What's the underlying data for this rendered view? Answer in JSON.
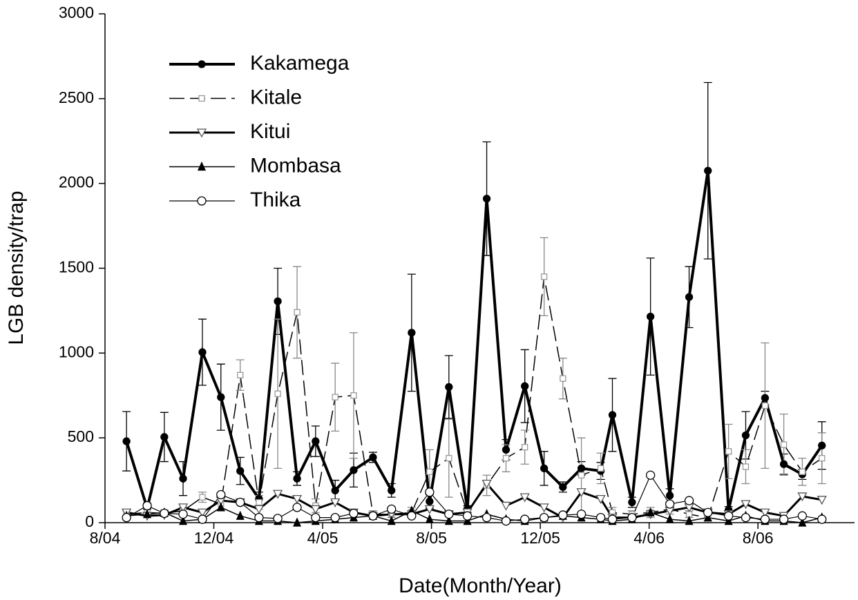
{
  "chart_data": {
    "type": "line",
    "x_label": "Date(Month/Year)",
    "y_label": "LGB density/trap",
    "xlim": [
      8,
      35.55
    ],
    "xticks": [
      {
        "value": 8,
        "label": "8/04"
      },
      {
        "value": 12,
        "label": "12/04"
      },
      {
        "value": 16,
        "label": "4/05"
      },
      {
        "value": 20,
        "label": "8/05"
      },
      {
        "value": 24,
        "label": "12/05"
      },
      {
        "value": 28,
        "label": "4/06"
      },
      {
        "value": 32,
        "label": "8/06"
      }
    ],
    "ylim": [
      0,
      3000
    ],
    "yticks": [
      0,
      500,
      1000,
      1500,
      2000,
      2500,
      3000
    ],
    "grid": false,
    "legend": "upper-left",
    "x": [
      8.79,
      9.55,
      10.18,
      10.87,
      11.58,
      12.26,
      12.97,
      13.66,
      14.35,
      15.06,
      15.74,
      16.46,
      17.14,
      17.85,
      18.53,
      19.27,
      19.93,
      20.64,
      21.32,
      22.03,
      22.74,
      23.43,
      24.14,
      24.83,
      25.51,
      26.22,
      26.65,
      27.37,
      28.05,
      28.76,
      29.47,
      30.16,
      30.92,
      31.55,
      32.26,
      32.95,
      33.63,
      34.35
    ],
    "series": [
      {
        "name": "Kakamega",
        "color": "#000000",
        "line_width": 4,
        "dash": "solid",
        "marker": "circle-filled",
        "values": [
          480,
          85,
          505,
          260,
          1005,
          740,
          305,
          140,
          1305,
          260,
          480,
          190,
          310,
          385,
          190,
          1120,
          125,
          800,
          80,
          1910,
          430,
          805,
          320,
          210,
          320,
          305,
          635,
          120,
          1215,
          160,
          1330,
          2075,
          75,
          515,
          735,
          345,
          285,
          455
        ],
        "errors": [
          175,
          30,
          145,
          100,
          195,
          195,
          80,
          40,
          195,
          40,
          90,
          60,
          100,
          30,
          40,
          345,
          40,
          185,
          20,
          335,
          60,
          215,
          100,
          30,
          40,
          50,
          215,
          30,
          345,
          40,
          180,
          520,
          20,
          140,
          40,
          60,
          30,
          140
        ]
      },
      {
        "name": "Kitale",
        "color": "#000000",
        "line_width": 1.5,
        "dash": "dashed",
        "marker": "square-open",
        "values": [
          50,
          60,
          55,
          70,
          150,
          110,
          870,
          120,
          760,
          1240,
          100,
          740,
          750,
          50,
          50,
          60,
          300,
          380,
          60,
          220,
          380,
          445,
          1450,
          850,
          280,
          320,
          60,
          50,
          60,
          80,
          50,
          30,
          420,
          330,
          690,
          460,
          300,
          380
        ],
        "errors": [
          20,
          20,
          20,
          20,
          30,
          40,
          90,
          40,
          440,
          270,
          40,
          200,
          370,
          20,
          20,
          30,
          130,
          230,
          30,
          60,
          80,
          100,
          230,
          120,
          220,
          90,
          30,
          20,
          30,
          30,
          20,
          20,
          160,
          100,
          370,
          180,
          80,
          150
        ]
      },
      {
        "name": "Kitui",
        "color": "#000000",
        "line_width": 3,
        "dash": "solid",
        "marker": "triangle-down-open",
        "values": [
          60,
          40,
          45,
          90,
          60,
          130,
          120,
          80,
          170,
          140,
          80,
          120,
          60,
          40,
          50,
          50,
          80,
          50,
          60,
          230,
          100,
          150,
          90,
          30,
          180,
          140,
          30,
          30,
          50,
          70,
          90,
          60,
          50,
          110,
          60,
          40,
          155,
          135
        ]
      },
      {
        "name": "Mombasa",
        "color": "#000000",
        "line_width": 1.5,
        "dash": "solid",
        "marker": "triangle-filled",
        "values": [
          40,
          50,
          60,
          10,
          20,
          90,
          40,
          10,
          10,
          0,
          10,
          20,
          30,
          40,
          10,
          70,
          20,
          10,
          10,
          50,
          20,
          10,
          30,
          40,
          30,
          20,
          10,
          20,
          60,
          20,
          10,
          30,
          10,
          40,
          10,
          10,
          0,
          30
        ]
      },
      {
        "name": "Thika",
        "color": "#000000",
        "line_width": 1.2,
        "dash": "solid",
        "marker": "circle-open",
        "values": [
          30,
          100,
          55,
          50,
          20,
          165,
          120,
          30,
          25,
          90,
          30,
          30,
          55,
          40,
          80,
          40,
          180,
          50,
          40,
          30,
          10,
          20,
          30,
          45,
          50,
          30,
          20,
          30,
          280,
          110,
          130,
          60,
          40,
          30,
          20,
          20,
          40,
          20
        ]
      }
    ]
  }
}
